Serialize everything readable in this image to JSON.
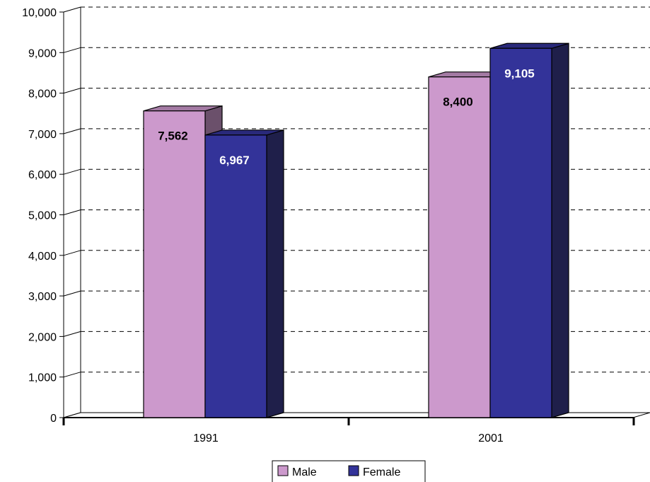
{
  "chart_data": {
    "type": "bar",
    "title": "",
    "xlabel": "",
    "ylabel": "",
    "categories": [
      "1991",
      "2001"
    ],
    "series": [
      {
        "name": "Male",
        "values": [
          7562,
          8400
        ],
        "labels": [
          "7,562",
          "8,400"
        ],
        "color": "#cc99cc",
        "side_color": "#6b506b",
        "top_color": "#a37aa3",
        "label_color": "#000000"
      },
      {
        "name": "Female",
        "values": [
          6967,
          9105
        ],
        "labels": [
          "6,967",
          "9,105"
        ],
        "color": "#333399",
        "side_color": "#1f1f4a",
        "top_color": "#29297a",
        "label_color": "#ffffff"
      }
    ],
    "ylim": [
      0,
      10000
    ],
    "yticks": [
      0,
      1000,
      2000,
      3000,
      4000,
      5000,
      6000,
      7000,
      8000,
      9000,
      10000
    ],
    "ytick_labels": [
      "0",
      "1,000",
      "2,000",
      "3,000",
      "4,000",
      "5,000",
      "6,000",
      "7,000",
      "8,000",
      "9,000",
      "10,000"
    ],
    "grid": true,
    "grid_style": "dashed",
    "style": "3d-clustered-column",
    "legend_position": "bottom"
  }
}
